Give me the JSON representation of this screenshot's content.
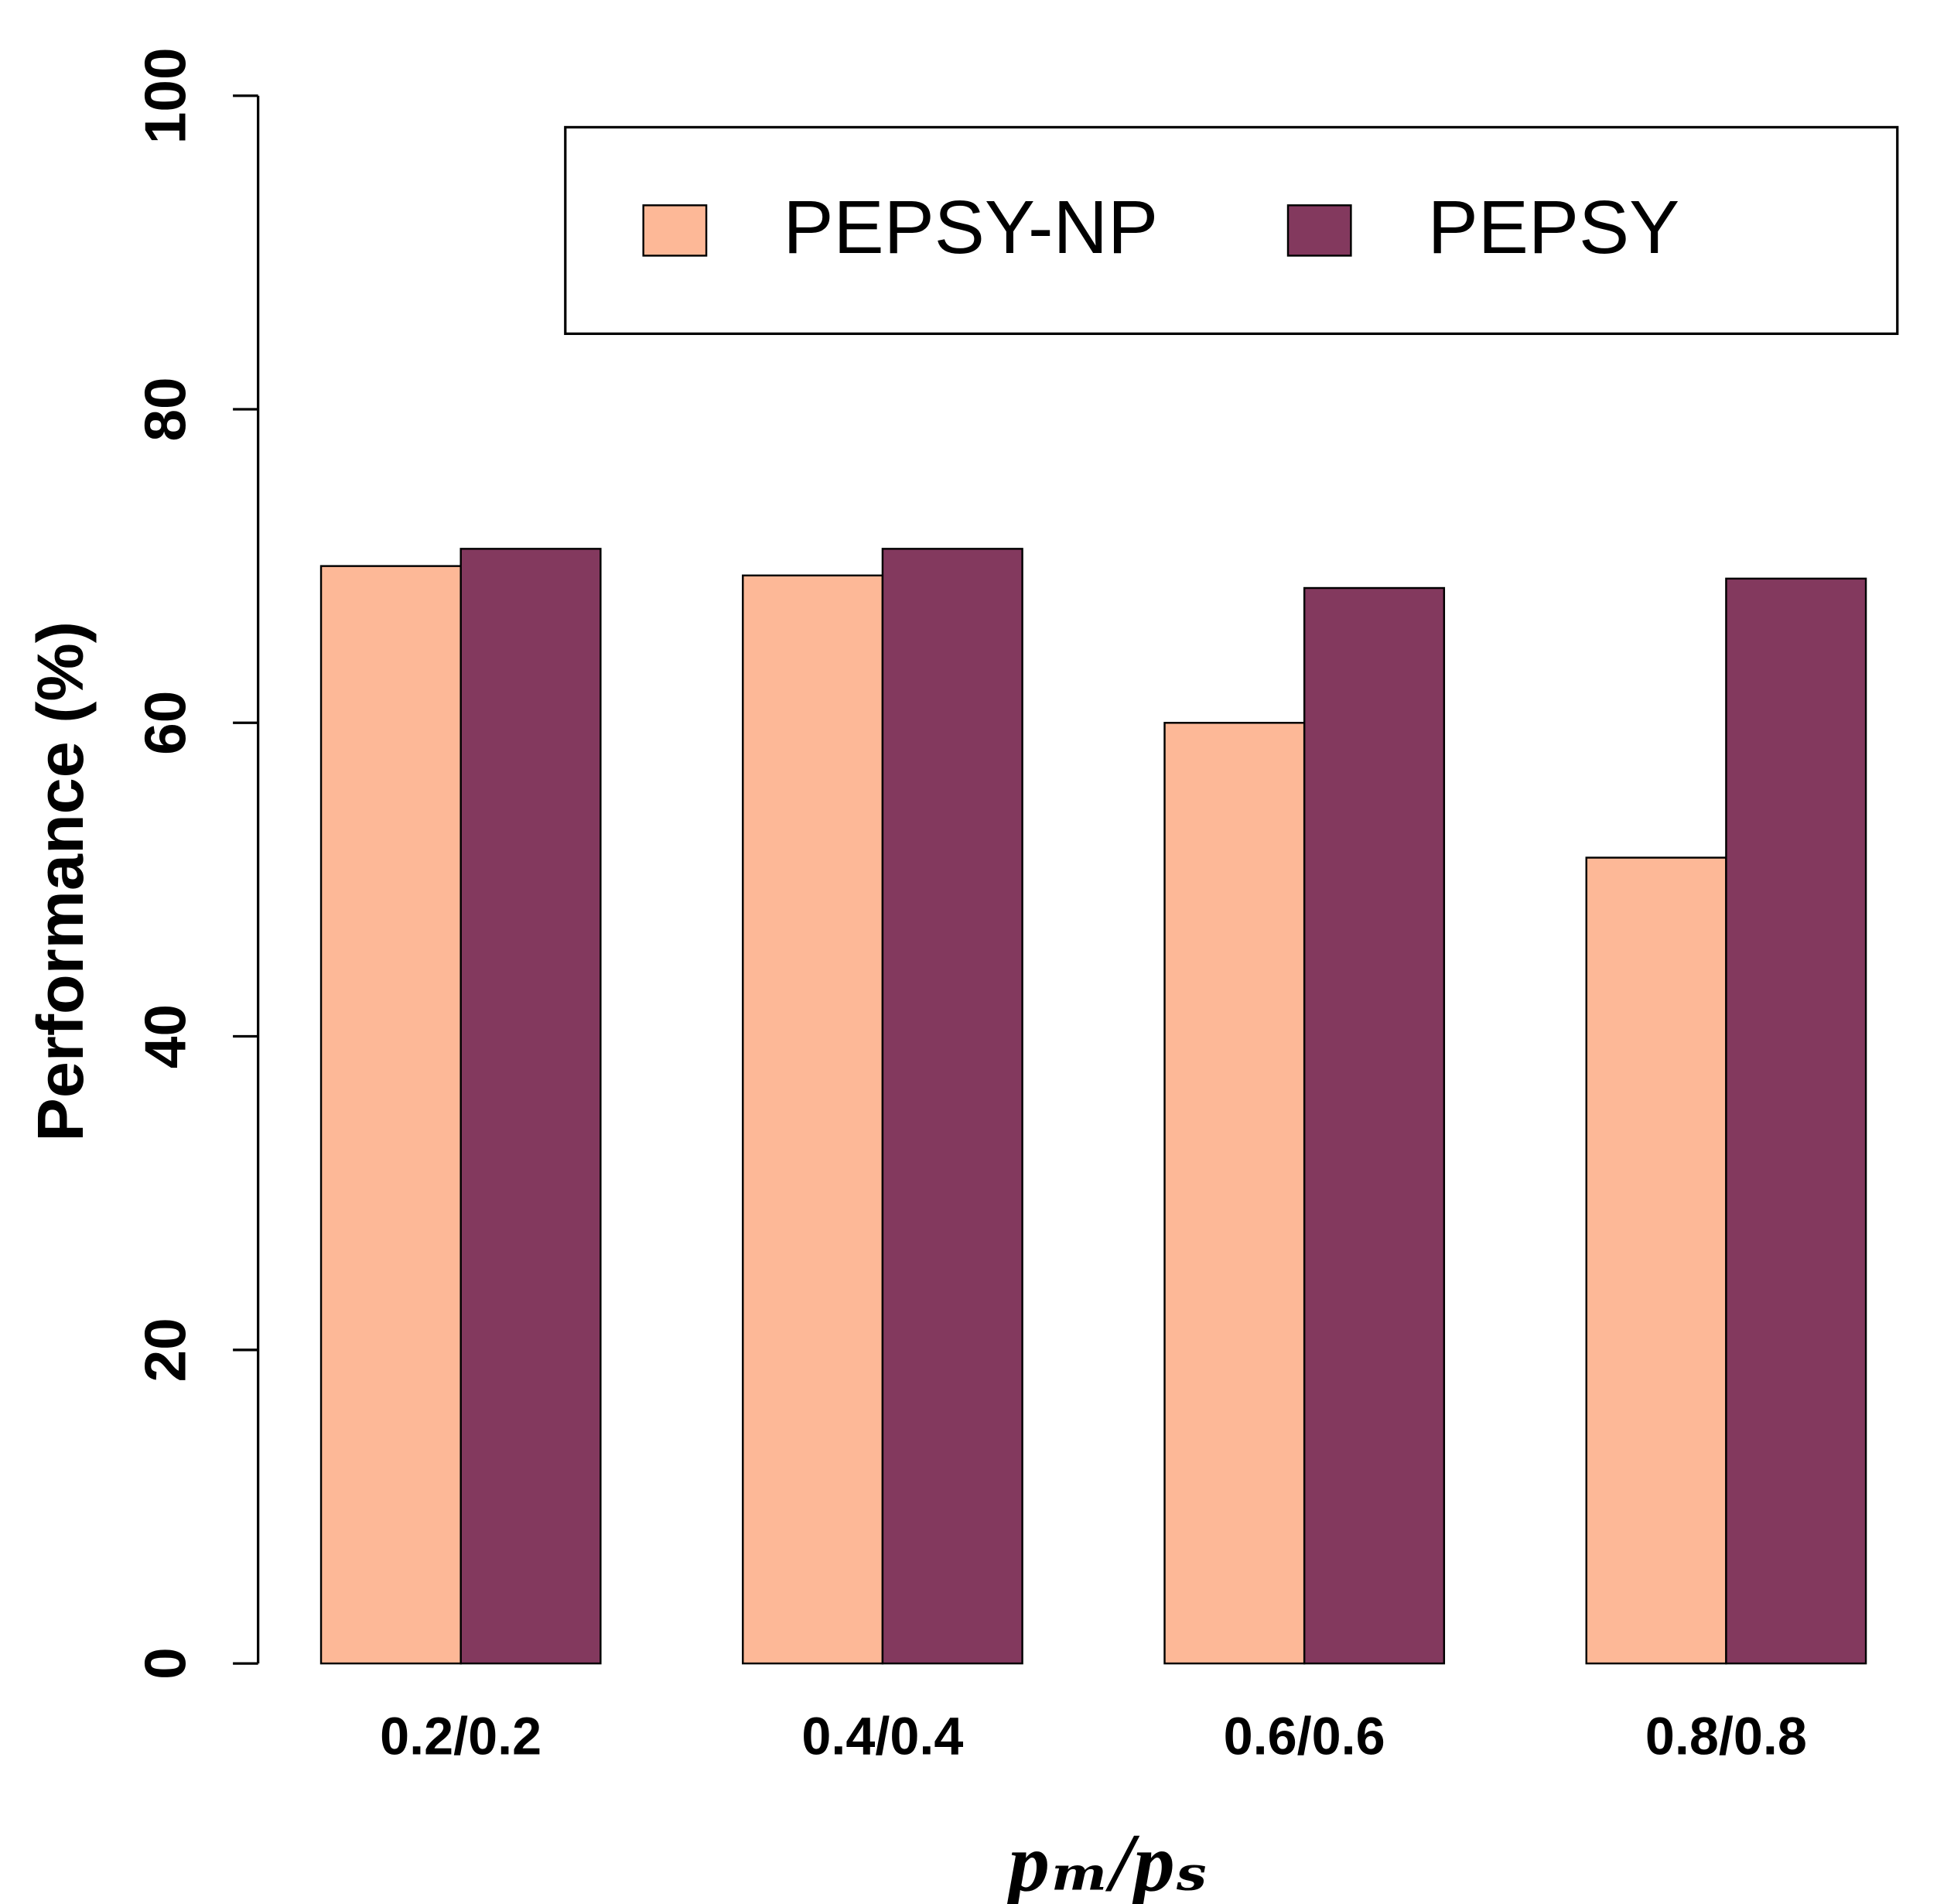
{
  "chart_data": {
    "type": "bar",
    "x_label": "pₘ/pₛ",
    "y_label": "Performance (%)",
    "categories": [
      "0.2/0.2",
      "0.4/0.4",
      "0.6/0.6",
      "0.8/0.8"
    ],
    "series": [
      {
        "name": "PEPSY-NP",
        "color": "#fdb897",
        "values": [
          70,
          69.4,
          60,
          51.4
        ]
      },
      {
        "name": "PEPSY",
        "color": "#83395e",
        "values": [
          71.1,
          71.1,
          68.6,
          69.2
        ]
      }
    ],
    "ylim": [
      0,
      100
    ],
    "yticks": [
      0,
      20,
      40,
      60,
      80,
      100
    ],
    "grid": false,
    "legend": "top-right"
  }
}
